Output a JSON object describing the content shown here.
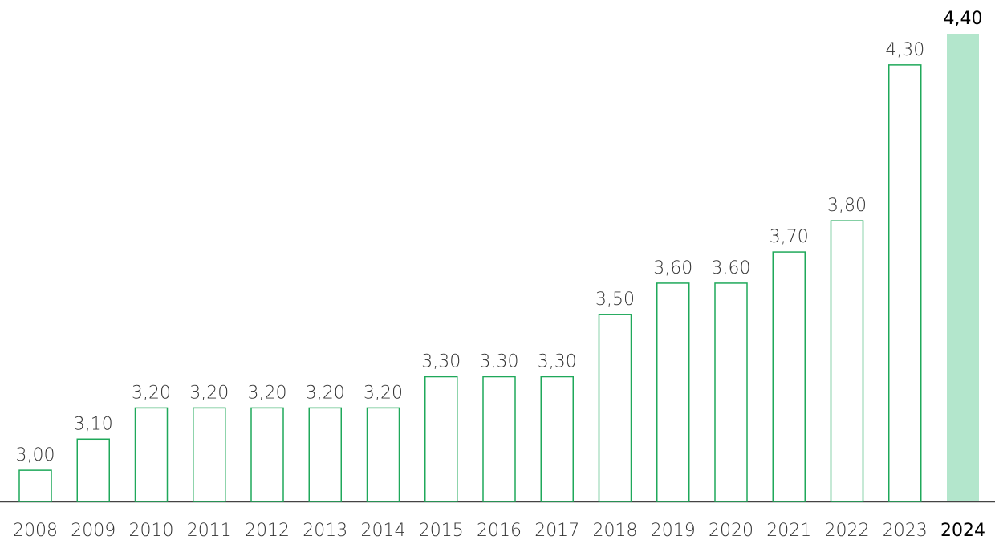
{
  "chart_data": {
    "type": "bar",
    "categories": [
      "2008",
      "2009",
      "2010",
      "2011",
      "2012",
      "2013",
      "2014",
      "2015",
      "2016",
      "2017",
      "2018",
      "2019",
      "2020",
      "2021",
      "2022",
      "2023",
      "2024"
    ],
    "values": [
      3.0,
      3.1,
      3.2,
      3.2,
      3.2,
      3.2,
      3.2,
      3.3,
      3.3,
      3.3,
      3.5,
      3.6,
      3.6,
      3.7,
      3.8,
      4.3,
      4.4
    ],
    "value_labels": [
      "3,00",
      "3,10",
      "3,20",
      "3,20",
      "3,20",
      "3,20",
      "3,20",
      "3,30",
      "3,30",
      "3,30",
      "3,50",
      "3,60",
      "3,60",
      "3,70",
      "3,80",
      "4,30",
      "4,40"
    ],
    "bar_fills": [
      "#ffffff",
      "#ffffff",
      "#ffffff",
      "#ffffff",
      "#ffffff",
      "#ffffff",
      "#ffffff",
      "#ffffff",
      "#ffffff",
      "#ffffff",
      "#ffffff",
      "#ffffff",
      "#ffffff",
      "#ffffff",
      "#ffffff",
      "#ffffff",
      "#b3e6cc"
    ],
    "bar_strokes": [
      "#1fa85a",
      "#1fa85a",
      "#1fa85a",
      "#1fa85a",
      "#1fa85a",
      "#1fa85a",
      "#1fa85a",
      "#1fa85a",
      "#1fa85a",
      "#1fa85a",
      "#1fa85a",
      "#1fa85a",
      "#1fa85a",
      "#1fa85a",
      "#1fa85a",
      "#1fa85a",
      "#b3e6cc"
    ],
    "ylim": [
      2.9,
      4.4
    ]
  }
}
